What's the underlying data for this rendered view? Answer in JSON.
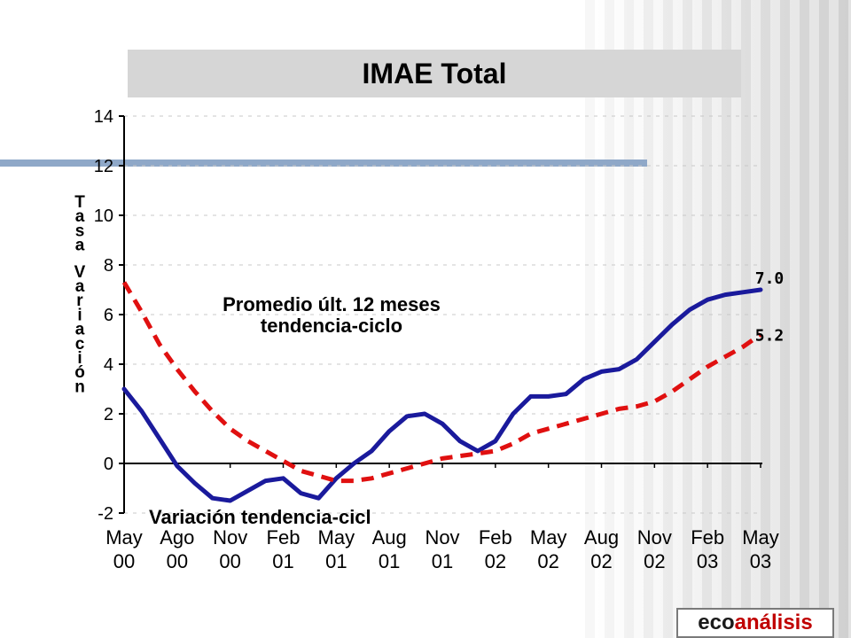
{
  "title": "IMAE Total",
  "logo": {
    "part1": "eco",
    "part2": "análisis",
    "color1": "#1a1a1a",
    "color2": "#c00000"
  },
  "chart_data": {
    "type": "line",
    "title": "IMAE Total",
    "ylabel": "Tasa Variación",
    "ylim": [
      -2,
      14
    ],
    "yticks": [
      "-2",
      "0",
      "2",
      "4",
      "6",
      "8",
      "10",
      "12",
      "14"
    ],
    "xtick_labels": [
      [
        "May",
        "00"
      ],
      [
        "Ago",
        "00"
      ],
      [
        "Nov",
        "00"
      ],
      [
        "Feb",
        "01"
      ],
      [
        "May",
        "01"
      ],
      [
        "Aug",
        "01"
      ],
      [
        "Nov",
        "01"
      ],
      [
        "Feb",
        "02"
      ],
      [
        "May",
        "02"
      ],
      [
        "Aug",
        "02"
      ],
      [
        "Nov",
        "02"
      ],
      [
        "Feb",
        "03"
      ],
      [
        "May",
        "03"
      ]
    ],
    "grid": "horizontal dashed",
    "series": [
      {
        "name": "Variación tendencia-cicl",
        "color": "#1a1a9c",
        "style": "solid",
        "end_label": "7.0",
        "values": [
          3.0,
          2.1,
          1.0,
          -0.1,
          -0.8,
          -1.4,
          -1.5,
          -1.1,
          -0.7,
          -0.6,
          -1.2,
          -1.4,
          -0.6,
          0.0,
          0.5,
          1.3,
          1.9,
          2.0,
          1.6,
          0.9,
          0.5,
          0.9,
          2.0,
          2.7,
          2.7,
          2.8,
          3.4,
          3.7,
          3.8,
          4.2,
          4.9,
          5.6,
          6.2,
          6.6,
          6.8,
          6.9,
          7.0
        ]
      },
      {
        "name": "Promedio últ. 12 meses tendencia-ciclo",
        "color": "#e01010",
        "style": "dashed",
        "end_label": "5.2",
        "values": [
          7.3,
          6.1,
          4.8,
          3.8,
          2.9,
          2.1,
          1.4,
          0.9,
          0.5,
          0.1,
          -0.3,
          -0.5,
          -0.7,
          -0.7,
          -0.6,
          -0.4,
          -0.2,
          0.0,
          0.2,
          0.3,
          0.4,
          0.5,
          0.8,
          1.2,
          1.4,
          1.6,
          1.8,
          2.0,
          2.2,
          2.3,
          2.5,
          2.9,
          3.4,
          3.9,
          4.3,
          4.7,
          5.2
        ]
      }
    ],
    "annotations": {
      "red_series_label": [
        "Promedio últ. 12 meses",
        "tendencia-ciclo"
      ],
      "blue_series_label": "Variación tendencia-cicl"
    }
  }
}
